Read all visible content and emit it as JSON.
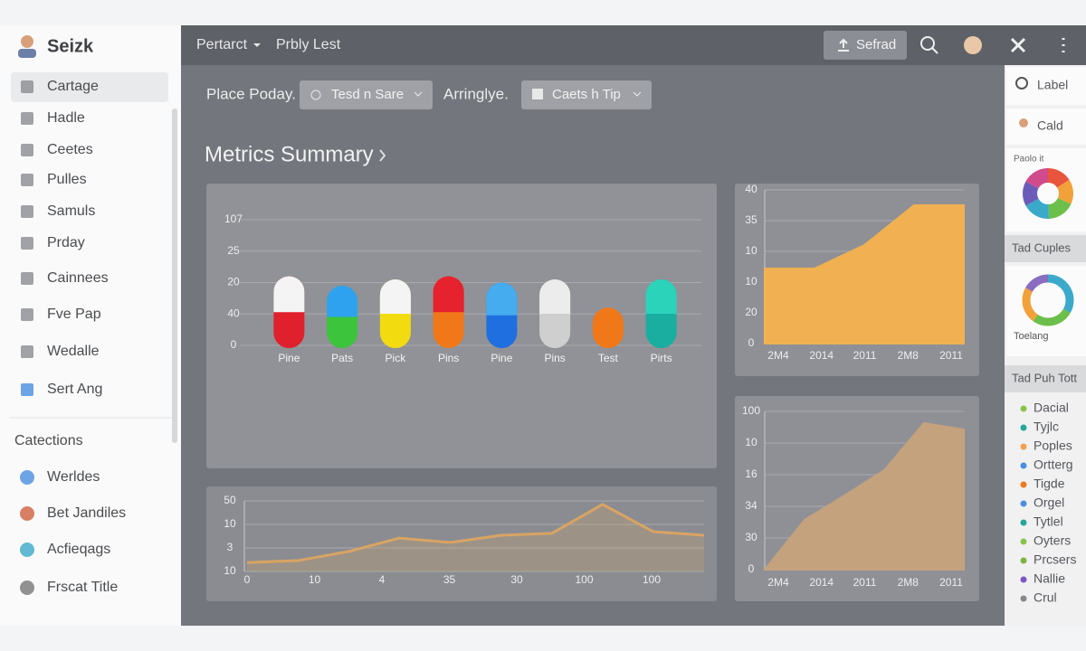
{
  "sidebar": {
    "title": "Seizk",
    "items": [
      "Cartage",
      "Hadle",
      "Ceetes",
      "Pulles",
      "Samuls",
      "Prday",
      "Cainnees",
      "Fve Pap",
      "Wedalle",
      "Sert Ang"
    ],
    "section": "Catections",
    "section_items": [
      "Werldes",
      "Bet Jandiles",
      "Acfieqags",
      "Frscat Title"
    ]
  },
  "topbar": {
    "menu": [
      "Pertarct",
      "Prbly Lest"
    ],
    "button": "Sefrad"
  },
  "filters": [
    {
      "label": "Place Poday.",
      "value": "Tesd n Sare"
    },
    {
      "label": "Arringlye.",
      "value": "Caets h Tip"
    }
  ],
  "section_title": "Metrics Summary",
  "chart_data": [
    {
      "type": "pill",
      "ylim": [
        0,
        4
      ],
      "ylabels": [
        "0",
        "40",
        "20",
        "25",
        "107"
      ],
      "categories": [
        "Pine",
        "Pats",
        "Pick",
        "Pins",
        "Pine",
        "Pins",
        "Test",
        "Pirts"
      ],
      "values": [
        2.2,
        1.9,
        2.1,
        2.2,
        2.0,
        2.1,
        1.2,
        2.1
      ],
      "top_colors": [
        "#f4f4f4",
        "#2fa2ef",
        "#f4f4f4",
        "#e5222e",
        "#45acf0",
        "#ececec",
        "#f07818",
        "#2cd3bb"
      ],
      "colors": [
        "#e0202c",
        "#3cc43c",
        "#f2dc10",
        "#f07818",
        "#1f6fe0",
        "#cfcfcf",
        "#f07818",
        "#1aaea0"
      ]
    },
    {
      "type": "line",
      "ylim": [
        0,
        3
      ],
      "ylabels": [
        "10",
        "3",
        "10",
        "50"
      ],
      "xlabels": [
        "0",
        "10",
        "4",
        "35",
        "30",
        "100",
        "100"
      ],
      "values": [
        0.38,
        0.46,
        0.85,
        1.42,
        1.23,
        1.54,
        1.62,
        2.85,
        1.69,
        1.54
      ],
      "color": "#d9a463"
    },
    {
      "type": "area",
      "ylim": [
        0,
        5
      ],
      "ylabels": [
        "0",
        "20",
        "10",
        "10",
        "35",
        "40"
      ],
      "xlabels": [
        "2M4",
        "2014",
        "2011",
        "2M8",
        "2011"
      ],
      "values": [
        2.44,
        2.44,
        3.2,
        4.5,
        4.5
      ],
      "color": "#f7b24e"
    },
    {
      "type": "area",
      "ylim": [
        0,
        5
      ],
      "ylabels": [
        "0",
        "30",
        "34",
        "16",
        "10",
        "100"
      ],
      "xlabels": [
        "2M4",
        "2014",
        "2011",
        "2M8",
        "2011"
      ],
      "values": [
        0,
        1.57,
        2.34,
        3.14,
        4.63,
        4.43
      ],
      "color": "#c7a47c"
    }
  ],
  "right_panel": {
    "items": [
      "Label",
      "Cald"
    ],
    "pie_caption": "Paolo it",
    "ring_caption": "Toelang",
    "headers": [
      "Tad Cuples",
      "Tad Puh Tott"
    ],
    "legend": [
      {
        "name": "Dacial",
        "color": "#8bc34a"
      },
      {
        "name": "Tyjlc",
        "color": "#26a69a"
      },
      {
        "name": "Poples",
        "color": "#f0a050"
      },
      {
        "name": "Ortterg",
        "color": "#4a8ee0"
      },
      {
        "name": "Tigde",
        "color": "#f07818"
      },
      {
        "name": "Orgel",
        "color": "#4a8ee0"
      },
      {
        "name": "Tytlel",
        "color": "#26a69a"
      },
      {
        "name": "Oyters",
        "color": "#8bc34a"
      },
      {
        "name": "Prcsers",
        "color": "#7cb342"
      },
      {
        "name": "Nallie",
        "color": "#7e57c2"
      },
      {
        "name": "Crul",
        "color": "#888888"
      }
    ]
  }
}
